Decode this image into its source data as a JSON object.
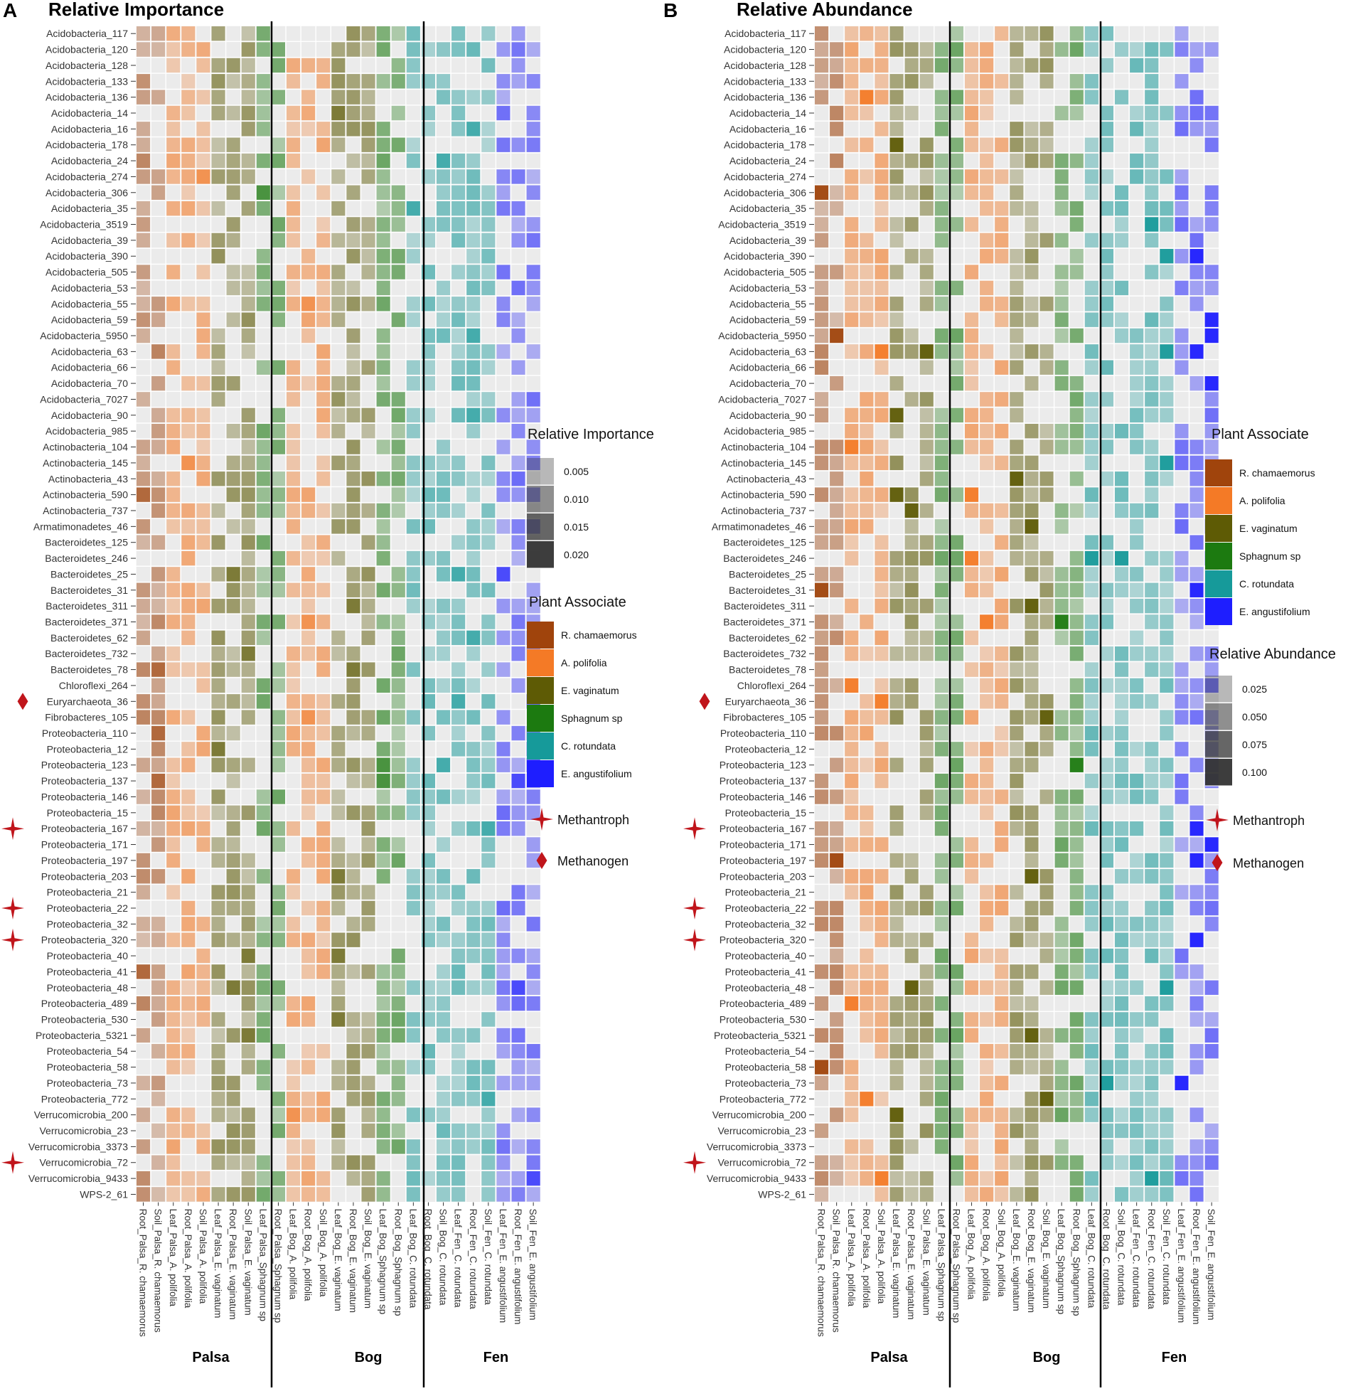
{
  "chart_data": [
    {
      "type": "heatmap",
      "panel_letter": "A",
      "title": "Relative Importance",
      "xlabel": "",
      "ylabel": "",
      "size_legend_title": "Relative Importance",
      "size_legend_values": [
        "0.005",
        "0.010",
        "0.015",
        "0.020"
      ],
      "size_legend_alpha": [
        0.35,
        0.55,
        0.75,
        0.95
      ]
    },
    {
      "type": "heatmap",
      "panel_letter": "B",
      "title": "Relative Abundance",
      "xlabel": "",
      "ylabel": "",
      "size_legend_title": "Relative Abundance",
      "size_legend_values": [
        "0.025",
        "0.050",
        "0.075",
        "0.100"
      ],
      "size_legend_alpha": [
        0.35,
        0.55,
        0.75,
        0.95
      ]
    }
  ],
  "rows": [
    "Acidobacteria_117",
    "Acidobacteria_120",
    "Acidobacteria_128",
    "Acidobacteria_133",
    "Acidobacteria_136",
    "Acidobacteria_14",
    "Acidobacteria_16",
    "Acidobacteria_178",
    "Acidobacteria_24",
    "Acidobacteria_274",
    "Acidobacteria_306",
    "Acidobacteria_35",
    "Acidobacteria_3519",
    "Acidobacteria_39",
    "Acidobacteria_390",
    "Acidobacteria_505",
    "Acidobacteria_53",
    "Acidobacteria_55",
    "Acidobacteria_59",
    "Acidobacteria_5950",
    "Acidobacteria_63",
    "Acidobacteria_66",
    "Acidobacteria_70",
    "Acidobacteria_7027",
    "Acidobacteria_90",
    "Acidobacteria_985",
    "Actinobacteria_104",
    "Actinobacteria_145",
    "Actinobacteria_43",
    "Actinobacteria_590",
    "Actinobacteria_737",
    "Armatimonadetes_46",
    "Bacteroidetes_125",
    "Bacteroidetes_246",
    "Bacteroidetes_25",
    "Bacteroidetes_31",
    "Bacteroidetes_311",
    "Bacteroidetes_371",
    "Bacteroidetes_62",
    "Bacteroidetes_732",
    "Bacteroidetes_78",
    "Chloroflexi_264",
    "Euryarchaeota_36",
    "Fibrobacteres_105",
    "Proteobacteria_110",
    "Proteobacteria_12",
    "Proteobacteria_123",
    "Proteobacteria_137",
    "Proteobacteria_146",
    "Proteobacteria_15",
    "Proteobacteria_167",
    "Proteobacteria_171",
    "Proteobacteria_197",
    "Proteobacteria_203",
    "Proteobacteria_21",
    "Proteobacteria_22",
    "Proteobacteria_32",
    "Proteobacteria_320",
    "Proteobacteria_40",
    "Proteobacteria_41",
    "Proteobacteria_48",
    "Proteobacteria_489",
    "Proteobacteria_530",
    "Proteobacteria_5321",
    "Proteobacteria_54",
    "Proteobacteria_58",
    "Proteobacteria_73",
    "Proteobacteria_772",
    "Verrucomicrobia_200",
    "Verrucomicrobia_23",
    "Verrucomicrobia_3373",
    "Verrucomicrobia_72",
    "Verrucomicrobia_9433",
    "WPS-2_61"
  ],
  "columns": [
    {
      "label": "Root_Palsa_R. chamaemorus",
      "plant": 0
    },
    {
      "label": "Soil_Palsa_R. chamaemorus",
      "plant": 0
    },
    {
      "label": "Leaf_Palsa_A. polifolia",
      "plant": 1
    },
    {
      "label": "Root_Palsa_A. polifolia",
      "plant": 1
    },
    {
      "label": "Soil_Palsa_A. polifolia",
      "plant": 1
    },
    {
      "label": "Leaf_Palsa_E. vaginatum",
      "plant": 2
    },
    {
      "label": "Root_Palsa_E. vaginatum",
      "plant": 2
    },
    {
      "label": "Soil_Palsa_E. vaginatum",
      "plant": 2
    },
    {
      "label": "Leaf_Palsa_Sphagnum sp",
      "plant": 3
    },
    {
      "label": "Root_Palsa_Sphagnum sp",
      "plant": 3
    },
    {
      "label": "Leaf_Bog_A. polifolia",
      "plant": 1
    },
    {
      "label": "Root_Bog_A. polifolia",
      "plant": 1
    },
    {
      "label": "Soil_Bog_A. polifolia",
      "plant": 1
    },
    {
      "label": "Leaf_Bog_E. vaginatum",
      "plant": 2
    },
    {
      "label": "Root_Bog_E. vaginatum",
      "plant": 2
    },
    {
      "label": "Soil_Bog_E. vaginatum",
      "plant": 2
    },
    {
      "label": "Leaf_Bog_Sphagnum sp",
      "plant": 3
    },
    {
      "label": "Root_Bog_Sphagnum sp",
      "plant": 3
    },
    {
      "label": "Leaf_Bog_C. rotundata",
      "plant": 4
    },
    {
      "label": "Root_Bog_C. rotundata",
      "plant": 4
    },
    {
      "label": "Soil_Bog_C. rotundata",
      "plant": 4
    },
    {
      "label": "Leaf_Fen_C. rotundata",
      "plant": 4
    },
    {
      "label": "Root_Fen_C. rotundata",
      "plant": 4
    },
    {
      "label": "Soil_Fen_C. rotundata",
      "plant": 4
    },
    {
      "label": "Leaf_Fen_E. angustifolium",
      "plant": 5
    },
    {
      "label": "Root_Fen_E. angustifolium",
      "plant": 5
    },
    {
      "label": "Soil_Fen_E. angustifolium",
      "plant": 5
    }
  ],
  "habitats": [
    {
      "label": "Palsa",
      "start": 0,
      "end": 9
    },
    {
      "label": "Bog",
      "start": 10,
      "end": 20
    },
    {
      "label": "Fen",
      "start": 21,
      "end": 26
    }
  ],
  "plant_legend": {
    "title": "Plant Associate",
    "items": [
      {
        "label": "R. chamaemorus",
        "color": "#a0440c"
      },
      {
        "label": "A. polifolia",
        "color": "#f47a26"
      },
      {
        "label": "E. vaginatum",
        "color": "#5e5b05"
      },
      {
        "label": "Sphagnum sp",
        "color": "#1c7a10"
      },
      {
        "label": "C. rotundata",
        "color": "#169a9a"
      },
      {
        "label": "E. angustifolium",
        "color": "#1e1eff"
      }
    ]
  },
  "markers": {
    "methanotroph_label": "Methantroph",
    "methanogen_label": "Methanogen",
    "methanotroph_rows": [
      "Proteobacteria_167",
      "Proteobacteria_22",
      "Proteobacteria_320",
      "Verrucomicrobia_72"
    ],
    "methanogen_rows": [
      "Euryarchaeota_36"
    ]
  },
  "colors": {
    "grid_background": "#ebebeb",
    "marker": "#c0151b"
  }
}
